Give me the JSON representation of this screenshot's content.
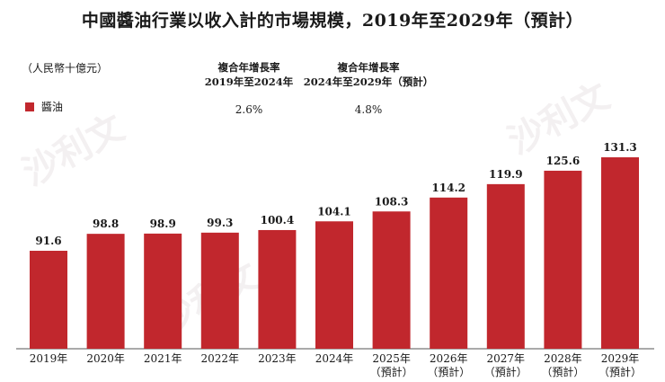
{
  "chart_data": {
    "type": "bar",
    "title": "中國醬油行業以收入計的市場規模，2019年至2029年（預計）",
    "unit_label": "（人民幣十億元）",
    "categories": [
      "2019年",
      "2020年",
      "2021年",
      "2022年",
      "2023年",
      "2024年",
      "2025年",
      "2026年",
      "2027年",
      "2028年",
      "2029年"
    ],
    "category_sublabels": [
      "",
      "",
      "",
      "",
      "",
      "",
      "（預計）",
      "（預計）",
      "（預計）",
      "（預計）",
      "（預計）"
    ],
    "series": [
      {
        "name": "醬油",
        "color": "#c1272d",
        "values": [
          91.6,
          98.8,
          98.9,
          99.3,
          100.4,
          104.1,
          108.3,
          114.2,
          119.9,
          125.6,
          131.3
        ]
      }
    ],
    "value_labels": [
      "91.6",
      "98.8",
      "98.9",
      "99.3",
      "100.4",
      "104.1",
      "108.3",
      "114.2",
      "119.9",
      "125.6",
      "131.3"
    ],
    "ylim": [
      50,
      131.3
    ],
    "grid": false,
    "legend_position": "top-left",
    "cagr": [
      {
        "title": "複合年增長率",
        "period": "2019年至2024年",
        "value": "2.6%"
      },
      {
        "title": "複合年增長率",
        "period": "2024年至2029年（預計）",
        "value": "4.8%"
      }
    ]
  },
  "watermark": [
    "沙利文",
    "沙利文",
    "沙利文"
  ]
}
